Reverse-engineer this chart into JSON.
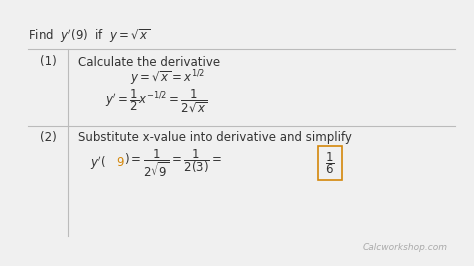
{
  "bg_color": "#f0f0f0",
  "step1_num": "(1)",
  "step1_label": "Calculate the derivative",
  "step2_num": "(2)",
  "step2_label": "Substitute x-value into derivative and simplify",
  "footer": "Calcworkshop.com",
  "line_color": "#bbbbbb",
  "text_color": "#333333",
  "orange_color": "#d4870a",
  "figw": 4.74,
  "figh": 2.66,
  "dpi": 100
}
